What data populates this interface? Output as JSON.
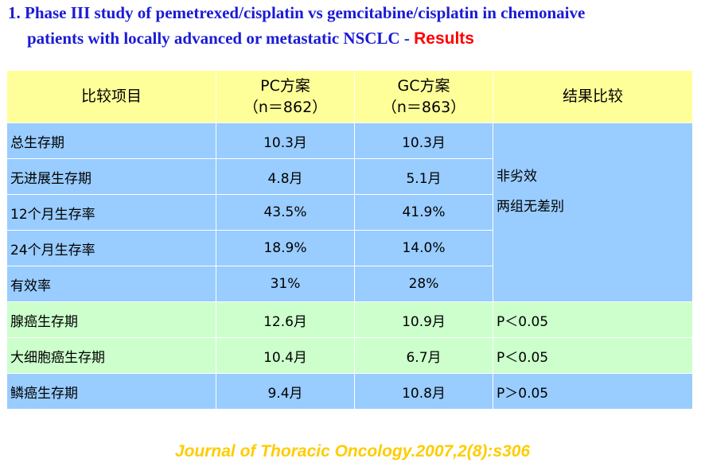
{
  "title": {
    "line1": "1. Phase III study of pemetrexed/cisplatin vs gemcitabine/cisplatin in chemonaive",
    "line2": "patients with locally advanced or metastatic NSCLC",
    "separator": " - ",
    "results": "Results"
  },
  "table": {
    "headers": {
      "item": "比较项目",
      "pc_line1": "PC方案",
      "pc_line2": "（n＝862）",
      "gc_line1": "GC方案",
      "gc_line2": "（n＝863）",
      "result": "结果比较"
    },
    "rows": [
      {
        "name": "总生存期",
        "pc": "10.3月",
        "gc": "10.3月"
      },
      {
        "name": "无进展生存期",
        "pc": "4.8月",
        "gc": "5.1月"
      },
      {
        "name": "12个月生存率",
        "pc": "43.5%",
        "gc": "41.9%"
      },
      {
        "name": "24个月生存率",
        "pc": "18.9%",
        "gc": "14.0%"
      },
      {
        "name": "有效率",
        "pc": "31%",
        "gc": "28%"
      },
      {
        "name": "腺癌生存期",
        "pc": "12.6月",
        "gc": "10.9月",
        "result": "P＜0.05"
      },
      {
        "name": "大细胞癌生存期",
        "pc": "10.4月",
        "gc": "6.7月",
        "result": "P＜0.05"
      },
      {
        "name": "鳞癌生存期",
        "pc": "9.4月",
        "gc": "10.8月",
        "result": "P＞0.05"
      }
    ],
    "merged_result_line1": "非劣效",
    "merged_result_line2": "两组无差别"
  },
  "citation": "Journal of Thoracic Oncology.2007,2(8):s306",
  "colors": {
    "title": "#1a1ad6",
    "results": "#ff0000",
    "header_bg": "#ffff99",
    "blue_row": "#99ccff",
    "green_row": "#ccffcc",
    "citation": "#ffcc00"
  }
}
